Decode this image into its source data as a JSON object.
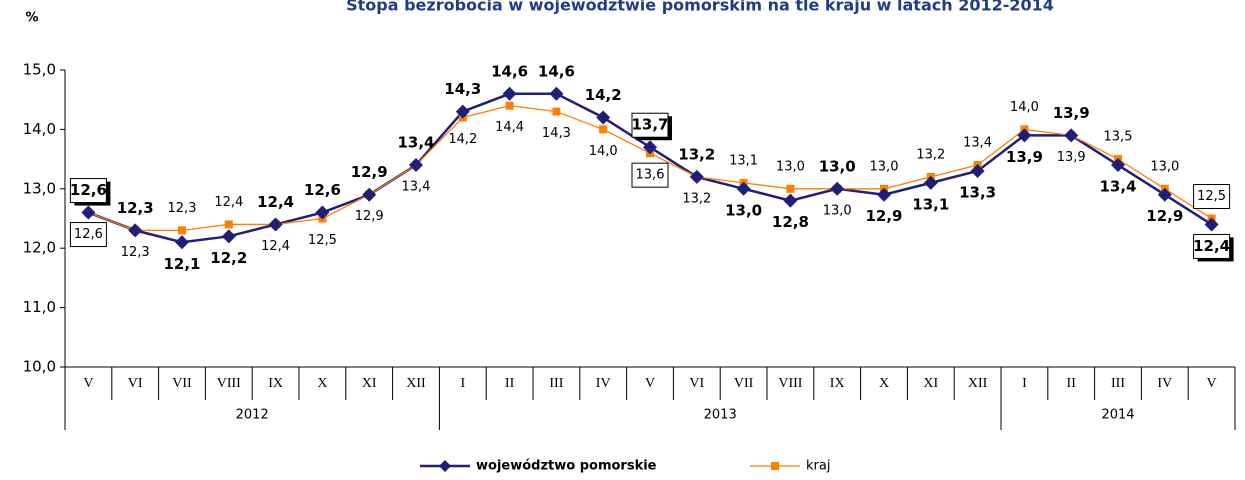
{
  "chart_data": {
    "type": "line",
    "title": "Stopa bezrobocia w województwie pomorskim na tle kraju w latach 2012-2014",
    "y_label": "%",
    "categories": [
      "V",
      "VI",
      "VII",
      "VIII",
      "IX",
      "X",
      "XI",
      "XII",
      "I",
      "II",
      "III",
      "IV",
      "V",
      "VI",
      "VII",
      "VIII",
      "IX",
      "X",
      "XI",
      "XII",
      "I",
      "II",
      "III",
      "IV",
      "V"
    ],
    "year_labels": [
      "2012",
      null,
      null,
      null,
      null,
      null,
      null,
      null,
      "2013",
      null,
      null,
      null,
      null,
      null,
      null,
      null,
      null,
      null,
      null,
      null,
      "2014",
      null,
      null,
      null,
      null
    ],
    "ylim": [
      10,
      15
    ],
    "yticks": [
      {
        "value": 10,
        "label": "10,0"
      },
      {
        "value": 11,
        "label": "11,0"
      },
      {
        "value": 12,
        "label": "12,0"
      },
      {
        "value": 13,
        "label": "13,0"
      },
      {
        "value": 14,
        "label": "14,0"
      },
      {
        "value": 15,
        "label": "15,0"
      }
    ],
    "grid": false,
    "legend": "bottom",
    "series": [
      {
        "name": "województwo pomorskie",
        "color": "#1f1f7a",
        "marker": "diamond",
        "values": [
          12.6,
          12.3,
          12.1,
          12.2,
          12.4,
          12.6,
          12.9,
          13.4,
          14.3,
          14.6,
          14.6,
          14.2,
          13.7,
          13.2,
          13.0,
          12.8,
          13.0,
          12.9,
          13.1,
          13.3,
          13.9,
          13.9,
          13.4,
          12.9,
          12.4
        ],
        "value_labels": [
          "12,6",
          "12,3",
          "12,1",
          "12,2",
          "12,4",
          "12,6",
          "12,9",
          "13,4",
          "14,3",
          "14,6",
          "14,6",
          "14,2",
          "13,7",
          "13,2",
          "13,0",
          "12,8",
          "13,0",
          "12,9",
          "13,1",
          "13,3",
          "13,9",
          "13,9",
          "13,4",
          "12,9",
          "12,4"
        ]
      },
      {
        "name": "kraj",
        "color": "#ff7f00",
        "marker": "square",
        "values": [
          12.6,
          12.3,
          12.3,
          12.4,
          12.4,
          12.5,
          12.9,
          13.4,
          14.2,
          14.4,
          14.3,
          14.0,
          13.6,
          13.2,
          13.1,
          13.0,
          13.0,
          13.0,
          13.2,
          13.4,
          14.0,
          13.9,
          13.5,
          13.0,
          12.5
        ],
        "value_labels": [
          "12,6",
          "12,3",
          "12,3",
          "12,4",
          "12,4",
          "12,5",
          "12,9",
          "13,4",
          "14,2",
          "14,4",
          "14,3",
          "14,0",
          "13,6",
          "13,2",
          "13,1",
          "13,0",
          "13,0",
          "13,0",
          "13,2",
          "13,4",
          "14,0",
          "13,9",
          "13,5",
          "13,0",
          "12,5"
        ]
      }
    ]
  }
}
